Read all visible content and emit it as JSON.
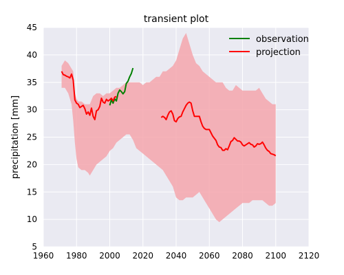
{
  "chart_data": {
    "type": "line",
    "title": "transient plot",
    "xlabel": "",
    "ylabel": "precipitation [mm]",
    "xlim": [
      1960,
      2120
    ],
    "ylim": [
      5,
      45
    ],
    "xticks": [
      1960,
      1980,
      2000,
      2020,
      2040,
      2060,
      2080,
      2100,
      2120
    ],
    "yticks": [
      5,
      10,
      15,
      20,
      25,
      30,
      35,
      40,
      45
    ],
    "grid": true,
    "legend_position": "top-right",
    "colors": {
      "background": "#eaeaf2",
      "grid": "#ffffff",
      "observation": "#008000",
      "projection": "#ff0000",
      "band": "#f4a6ad"
    },
    "band": {
      "x": [
        1971,
        1973,
        1975,
        1977,
        1978,
        1979,
        1980,
        1981,
        1983,
        1985,
        1987,
        1988,
        1990,
        1992,
        1994,
        1996,
        1998,
        2000,
        2002,
        2004,
        2006,
        2008,
        2010,
        2012,
        2014,
        2016,
        2018,
        2020,
        2022,
        2024,
        2026,
        2028,
        2030,
        2032,
        2034,
        2036,
        2038,
        2040,
        2042,
        2044,
        2046,
        2048,
        2050,
        2052,
        2054,
        2056,
        2058,
        2060,
        2062,
        2064,
        2066,
        2068,
        2070,
        2072,
        2074,
        2076,
        2078,
        2080,
        2082,
        2084,
        2086,
        2088,
        2090,
        2092,
        2094,
        2096,
        2098,
        2100
      ],
      "upper": [
        38,
        39,
        38.5,
        37.5,
        37,
        33,
        32,
        31.5,
        31.5,
        31,
        31,
        31,
        32.5,
        33,
        33,
        32.5,
        33,
        33,
        33.5,
        34,
        34,
        34.5,
        35,
        35,
        35,
        35,
        35,
        34.5,
        35,
        35,
        35.5,
        36,
        36,
        37,
        37,
        37.5,
        38,
        39,
        41,
        43,
        44,
        42,
        40,
        38.5,
        38,
        37,
        36.5,
        36,
        35.5,
        35,
        35,
        35,
        34,
        33.5,
        33.5,
        34.5,
        34,
        33.5,
        33.5,
        33.5,
        33.5,
        33.5,
        34,
        33,
        32,
        31.5,
        31,
        31
      ],
      "lower": [
        34,
        34,
        33,
        31,
        28,
        24,
        21,
        19.5,
        19,
        19,
        18.5,
        18,
        19,
        20,
        20.5,
        21,
        21.5,
        22.5,
        23,
        24,
        24.5,
        25,
        25.5,
        25.5,
        24.5,
        23,
        22.5,
        22,
        21.5,
        21,
        20.5,
        20,
        19.5,
        19,
        18,
        17,
        16,
        14,
        13.5,
        13.5,
        14,
        14,
        14,
        14.5,
        15,
        14,
        13,
        12,
        11,
        10,
        9.5,
        10,
        10.5,
        11,
        11.5,
        12,
        12.5,
        13,
        13,
        13,
        13.5,
        13.5,
        13.5,
        13.5,
        13,
        12.5,
        12.5,
        13
      ]
    },
    "series": [
      {
        "name": "observation",
        "x": [
          2000,
          2001,
          2002,
          2003,
          2004,
          2005,
          2006,
          2007,
          2008,
          2009,
          2010,
          2011,
          2012,
          2013,
          2014
        ],
        "values": [
          30.8,
          31.8,
          31.2,
          32.0,
          31.6,
          33.0,
          33.6,
          33.3,
          32.9,
          33.3,
          34.8,
          35.2,
          36.0,
          36.6,
          37.6
        ]
      },
      {
        "name": "projection",
        "x": [
          1971,
          1972,
          1973,
          1974,
          1975,
          1976,
          1977,
          1978,
          1979,
          1980,
          1981,
          1982,
          1983,
          1984,
          1985,
          1986,
          1987,
          1988,
          1989,
          1990,
          1991,
          1992,
          1993,
          1994,
          1995,
          1996,
          1997,
          1998,
          1999,
          2000,
          2001,
          2002,
          2003,
          2004
        ],
        "values": [
          37.0,
          36.4,
          36.3,
          36.1,
          36.0,
          35.8,
          36.5,
          35.4,
          31.8,
          31.2,
          31.0,
          30.4,
          30.6,
          30.8,
          30.2,
          29.2,
          29.6,
          29.0,
          30.3,
          28.8,
          28.2,
          29.8,
          30.0,
          30.6,
          32.1,
          31.4,
          31.2,
          31.9,
          31.6,
          31.8,
          32.1,
          31.6,
          32.3,
          32.4
        ]
      },
      {
        "name": "projection",
        "x": [
          2031,
          2032,
          2033,
          2034,
          2035,
          2036,
          2037,
          2038,
          2039,
          2040,
          2041,
          2042,
          2043,
          2044,
          2045,
          2046,
          2047,
          2048,
          2049,
          2050,
          2051,
          2052,
          2053,
          2054,
          2055,
          2056,
          2057,
          2058,
          2059,
          2060,
          2061,
          2062,
          2063,
          2064,
          2065,
          2066,
          2067,
          2068,
          2069,
          2070,
          2071,
          2072,
          2073,
          2074,
          2075,
          2076,
          2077,
          2078,
          2079,
          2080,
          2081,
          2082,
          2083,
          2084,
          2085,
          2086,
          2087,
          2088,
          2089,
          2090,
          2091,
          2092,
          2093,
          2094,
          2095,
          2096,
          2097,
          2098,
          2099,
          2100
        ],
        "values": [
          28.6,
          28.8,
          28.6,
          28.2,
          29.0,
          29.6,
          29.8,
          29.2,
          28.0,
          27.8,
          28.4,
          28.7,
          28.8,
          29.6,
          30.2,
          30.8,
          31.2,
          31.4,
          31.2,
          29.8,
          28.8,
          28.8,
          28.8,
          28.8,
          27.8,
          27.0,
          26.6,
          26.4,
          26.4,
          26.4,
          25.8,
          25.2,
          24.8,
          24.4,
          23.6,
          23.2,
          23.1,
          22.6,
          22.6,
          22.9,
          22.7,
          23.4,
          24.2,
          24.4,
          24.9,
          24.6,
          24.3,
          24.3,
          24.1,
          23.6,
          23.4,
          23.6,
          23.8,
          24.0,
          23.7,
          23.6,
          23.2,
          23.4,
          23.8,
          23.7,
          23.8,
          24.1,
          23.6,
          23.0,
          22.6,
          22.4,
          22.0,
          21.9,
          21.8,
          21.6
        ]
      }
    ],
    "legend": [
      {
        "label": "observation",
        "color_key": "observation"
      },
      {
        "label": "projection",
        "color_key": "projection"
      }
    ]
  }
}
